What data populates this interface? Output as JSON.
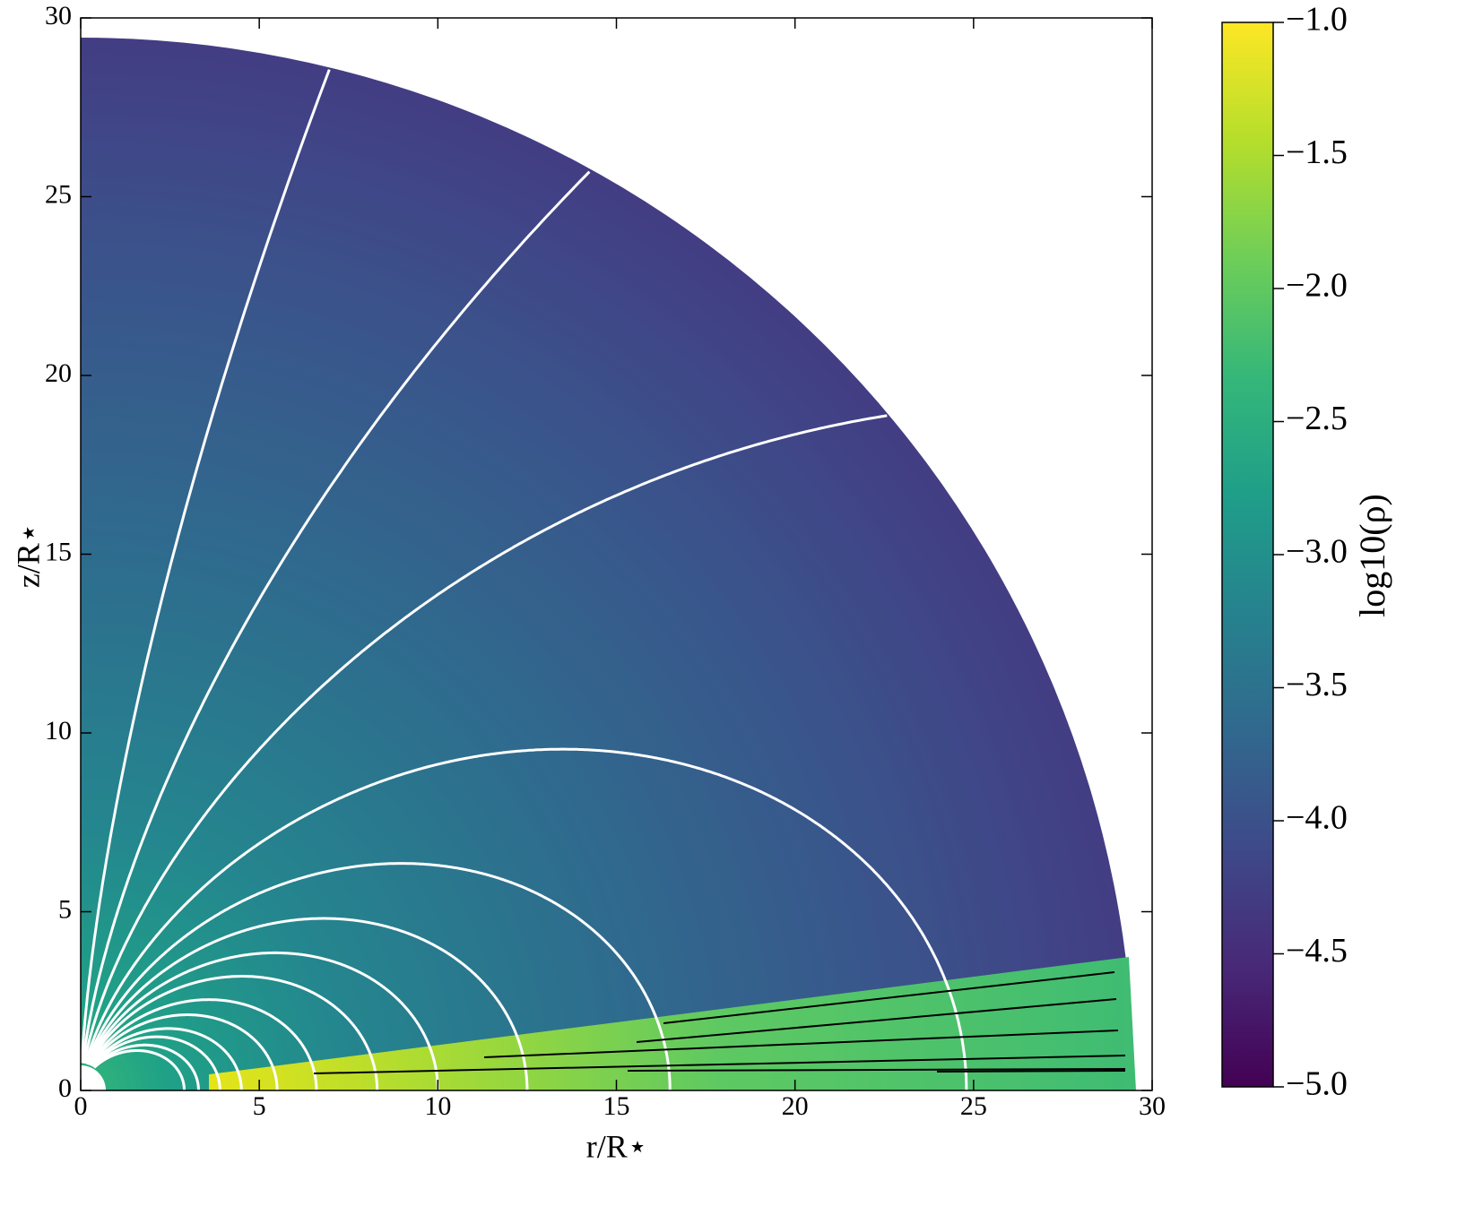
{
  "chart_data": {
    "type": "heatmap",
    "xlabel": "r/R⋆",
    "ylabel": "z/R⋆",
    "xlim": [
      0,
      30
    ],
    "ylim": [
      0,
      30
    ],
    "xticks": [
      0,
      5,
      10,
      15,
      20,
      25,
      30
    ],
    "yticks": [
      0,
      5,
      10,
      15,
      20,
      25,
      30
    ],
    "colorbar": {
      "label": "log10(ρ)",
      "colormap": "viridis",
      "lim": [
        -5,
        -1
      ],
      "ticks": [
        {
          "value": -5,
          "label": "−5.0"
        },
        {
          "value": -4.5,
          "label": "−4.5"
        },
        {
          "value": -4,
          "label": "−4.0"
        },
        {
          "value": -3.5,
          "label": "−3.5"
        },
        {
          "value": -3,
          "label": "−3.0"
        },
        {
          "value": -2.5,
          "label": "−2.5"
        },
        {
          "value": -2,
          "label": "−2.0"
        },
        {
          "value": -1.5,
          "label": "−1.5"
        },
        {
          "value": -1,
          "label": "−1.0"
        }
      ]
    }
  }
}
